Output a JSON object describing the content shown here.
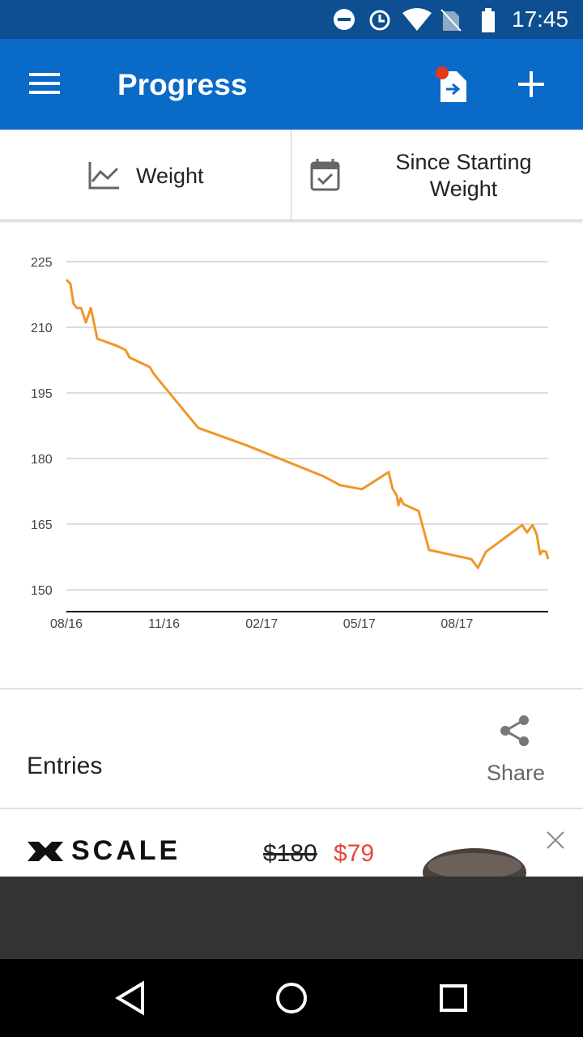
{
  "status_bar": {
    "time": "17:45"
  },
  "app_bar": {
    "title": "Progress"
  },
  "filters": {
    "metric": "Weight",
    "range_line1": "Since Starting",
    "range_line2": "Weight"
  },
  "chart_data": {
    "type": "line",
    "x": [
      0,
      0.12,
      0.22,
      0.32,
      0.45,
      0.6,
      0.75,
      0.95,
      1.57,
      1.82,
      1.94,
      2.56,
      2.69,
      4.05,
      5.54,
      7.91,
      8.41,
      9.08,
      9.9,
      10.02,
      10.15,
      10.2,
      10.27,
      10.35,
      10.82,
      11.14,
      12.44,
      12.64,
      12.89,
      14.0,
      14.15,
      14.32,
      14.45,
      14.55,
      14.63,
      14.73,
      14.8
    ],
    "series": [
      {
        "color": "#f0962a",
        "values": [
          220.9,
          220,
          215.4,
          214.4,
          214.4,
          211.1,
          214.4,
          207.4,
          205.7,
          204.8,
          203.1,
          200.9,
          199.3,
          187,
          183,
          175.9,
          173.9,
          173,
          176.9,
          173.1,
          171.5,
          169.3,
          170.9,
          169.6,
          168,
          159.1,
          157,
          155,
          158.7,
          164.8,
          163.1,
          164.8,
          162.6,
          158.1,
          158.9,
          158.7,
          157
        ]
      }
    ],
    "xlim": [
      0,
      14.8
    ],
    "ylim": [
      145,
      230
    ],
    "xticks": [
      {
        "value": 0,
        "label": "08/16"
      },
      {
        "value": 3,
        "label": "11/16"
      },
      {
        "value": 6,
        "label": "02/17"
      },
      {
        "value": 9,
        "label": "05/17"
      },
      {
        "value": 12,
        "label": "08/17"
      }
    ],
    "yticks": [
      150,
      165,
      180,
      195,
      210,
      225
    ],
    "grid": true
  },
  "entries": {
    "title": "Entries",
    "share": "Share"
  },
  "ad": {
    "brand": "SCALE",
    "old_price": "$180",
    "new_price": "$79"
  }
}
